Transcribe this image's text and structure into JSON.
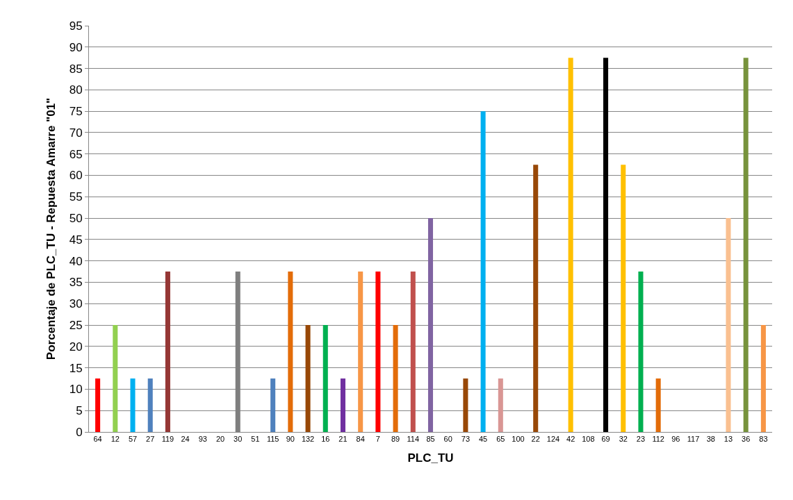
{
  "chart_data": {
    "type": "bar",
    "xlabel": "PLC_TU",
    "ylabel": "Porcentaje de PLC_TU - Repuesta Amarre \"01\"",
    "categories": [
      "64",
      "12",
      "57",
      "27",
      "119",
      "24",
      "93",
      "20",
      "30",
      "51",
      "115",
      "90",
      "132",
      "16",
      "21",
      "84",
      "7",
      "89",
      "114",
      "85",
      "60",
      "73",
      "45",
      "65",
      "100",
      "22",
      "124",
      "42",
      "108",
      "69",
      "32",
      "23",
      "112",
      "96",
      "117",
      "38",
      "13",
      "36",
      "83"
    ],
    "values": [
      12.5,
      25,
      12.5,
      12.5,
      37.5,
      0,
      0,
      0,
      37.5,
      0,
      12.5,
      37.5,
      25,
      25,
      12.5,
      37.5,
      37.5,
      25,
      37.5,
      50,
      0,
      12.5,
      75,
      12.5,
      0,
      62.5,
      0,
      87.5,
      0,
      87.5,
      62.5,
      37.5,
      12.5,
      0,
      0,
      0,
      50,
      87.5,
      25
    ],
    "colors": [
      "#ff0000",
      "#92d050",
      "#00b0f0",
      "#4f81bd",
      "#953735",
      "#7f7f7f",
      "#7f7f7f",
      "#7f7f7f",
      "#7f7f7f",
      "#7f7f7f",
      "#4f81bd",
      "#e36c09",
      "#984807",
      "#00b050",
      "#7030a0",
      "#f79646",
      "#ff0000",
      "#e36c09",
      "#c0504d",
      "#8064a2",
      "#7f7f7f",
      "#984807",
      "#00b0f0",
      "#d99694",
      "#7f7f7f",
      "#984807",
      "#7f7f7f",
      "#ffc000",
      "#7f7f7f",
      "#000000",
      "#ffc000",
      "#00b050",
      "#e36c09",
      "#7f7f7f",
      "#7f7f7f",
      "#7f7f7f",
      "#fac090",
      "#77933c",
      "#f79646"
    ],
    "ylim": [
      0,
      95
    ],
    "yticks": [
      0,
      5,
      10,
      15,
      20,
      25,
      30,
      35,
      40,
      45,
      50,
      55,
      60,
      65,
      70,
      75,
      80,
      85,
      90,
      95
    ],
    "grid": "y"
  }
}
